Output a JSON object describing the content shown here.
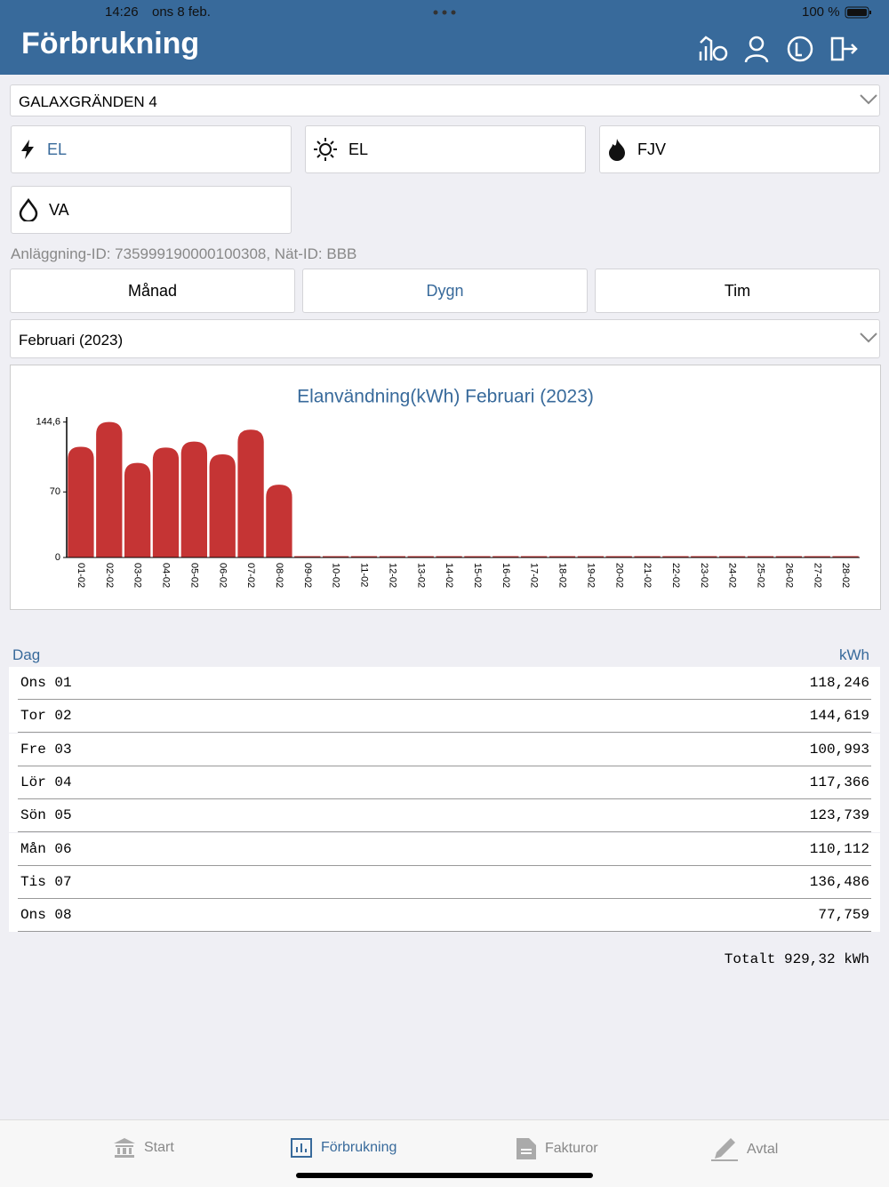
{
  "status_bar": {
    "time": "14:26",
    "date": "ons 8 feb.",
    "battery": "100 %"
  },
  "header": {
    "title": "Förbrukning"
  },
  "address": "GALAXGRÄNDEN 4",
  "utilities": [
    "EL",
    "EL",
    "FJV",
    "VA"
  ],
  "facility_info": "Anläggning-ID: 735999190000100308, Nät-ID: BBB",
  "period_tabs": [
    "Månad",
    "Dygn",
    "Tim"
  ],
  "period_select": "Februari (2023)",
  "chart_data": {
    "type": "bar",
    "title": "Elanvändning(kWh) Februari (2023)",
    "categories": [
      "01-02",
      "02-02",
      "03-02",
      "04-02",
      "05-02",
      "06-02",
      "07-02",
      "08-02",
      "09-02",
      "10-02",
      "11-02",
      "12-02",
      "13-02",
      "14-02",
      "15-02",
      "16-02",
      "17-02",
      "18-02",
      "19-02",
      "20-02",
      "21-02",
      "22-02",
      "23-02",
      "24-02",
      "25-02",
      "26-02",
      "27-02",
      "28-02"
    ],
    "values": [
      118.246,
      144.619,
      100.993,
      117.366,
      123.739,
      110.112,
      136.486,
      77.759,
      0,
      0,
      0,
      0,
      0,
      0,
      0,
      0,
      0,
      0,
      0,
      0,
      0,
      0,
      0,
      0,
      0,
      0,
      0,
      0
    ],
    "color": "#c53434",
    "ylim": [
      0,
      150
    ],
    "yticks": [
      0,
      70,
      {
        "value": 144.6,
        "label": "144,6"
      }
    ]
  },
  "table": {
    "headers": [
      "Dag",
      "kWh"
    ],
    "rows": [
      [
        "Ons 01",
        "118,246"
      ],
      [
        "Tor 02",
        "144,619"
      ],
      [
        "Fre 03",
        "100,993"
      ],
      [
        "Lör 04",
        "117,366"
      ],
      [
        "Sön 05",
        "123,739"
      ],
      [
        "Mån 06",
        "110,112"
      ],
      [
        "Tis 07",
        "136,486"
      ],
      [
        "Ons 08",
        "77,759"
      ]
    ]
  },
  "total": "Totalt 929,32 kWh",
  "tab_bar": [
    "Start",
    "Förbrukning",
    "Fakturor",
    "Avtal"
  ]
}
